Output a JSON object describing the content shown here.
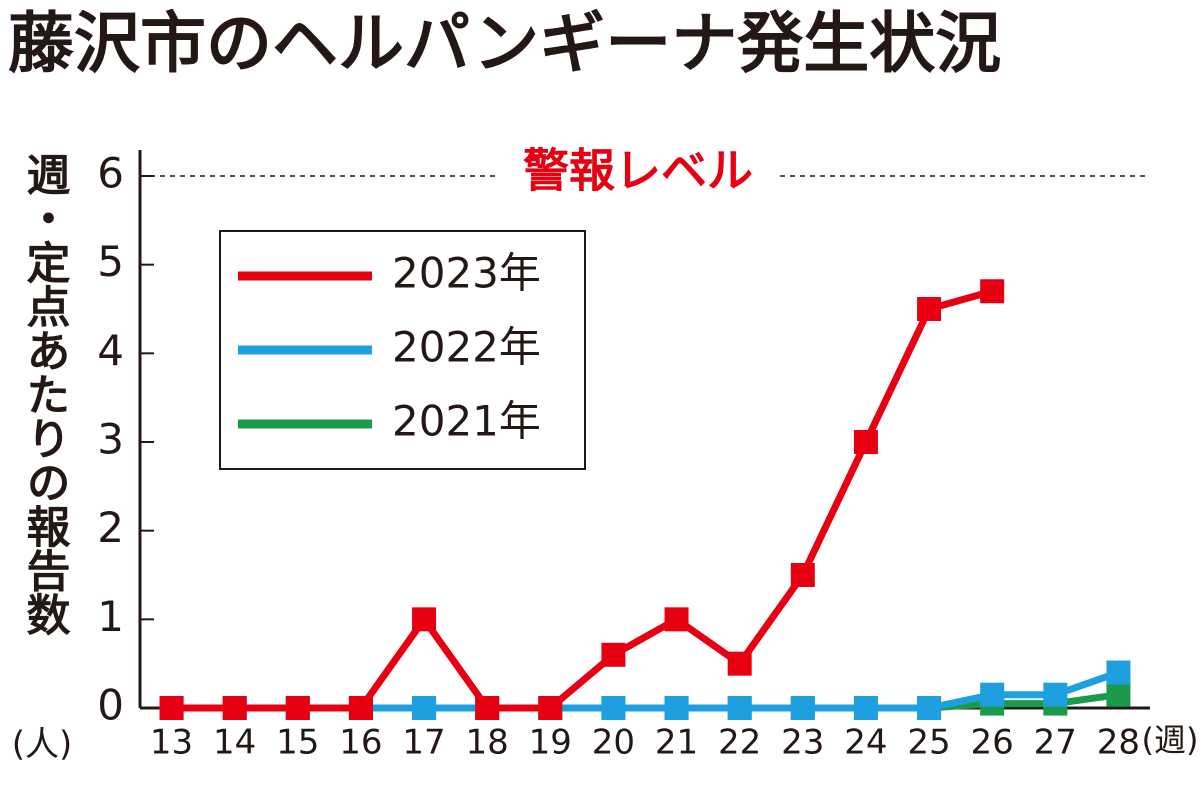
{
  "chart_data": {
    "type": "line",
    "title": "藤沢市のヘルパンギーナ発生状況",
    "y_label": "週・定点あたりの報告数",
    "y_unit": "(人)",
    "x_unit": "(週)",
    "annotation": {
      "text": "警報レベル",
      "value": 6
    },
    "x": [
      13,
      14,
      15,
      16,
      17,
      18,
      19,
      20,
      21,
      22,
      23,
      24,
      25,
      26,
      27,
      28
    ],
    "xlim": [
      12.5,
      28.5
    ],
    "xticks": [
      13,
      14,
      15,
      16,
      17,
      18,
      19,
      20,
      21,
      22,
      23,
      24,
      25,
      26,
      27,
      28
    ],
    "ylim": [
      0,
      6.3
    ],
    "yticks": [
      0,
      1,
      2,
      3,
      4,
      5,
      6
    ],
    "legend": "upper left",
    "series": [
      {
        "name": "2023年",
        "color": "#e60012",
        "values": [
          0,
          0,
          0,
          0,
          1.0,
          0,
          0,
          0.6,
          1.0,
          0.5,
          1.5,
          3.0,
          4.5,
          4.7,
          null,
          null
        ]
      },
      {
        "name": "2022年",
        "color": "#1ea0e0",
        "values": [
          0,
          0,
          0,
          0,
          0,
          0,
          0,
          0,
          0,
          0,
          0,
          0,
          0,
          0.15,
          0.15,
          0.4
        ]
      },
      {
        "name": "2021年",
        "color": "#1a9a4a",
        "values": [
          0,
          0,
          0,
          0,
          0,
          0,
          0,
          0,
          0,
          0,
          0,
          0,
          0,
          0.05,
          0.05,
          0.15
        ]
      }
    ]
  }
}
